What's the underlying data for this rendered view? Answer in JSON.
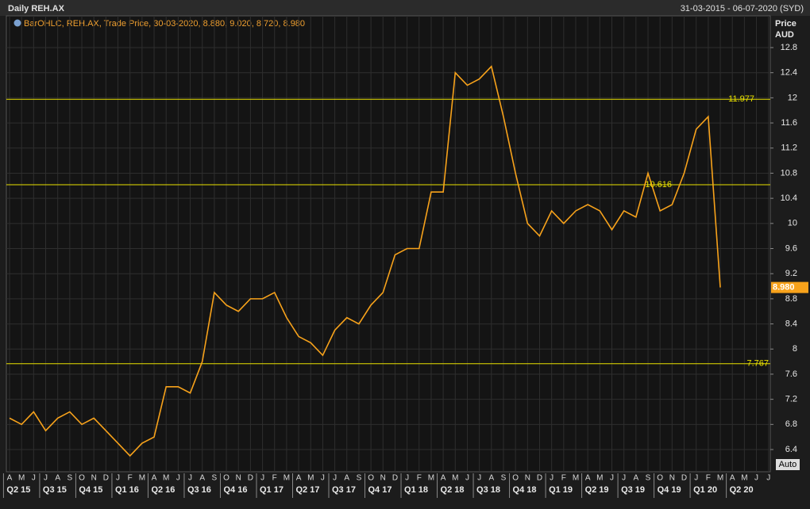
{
  "chart_data": {
    "type": "line",
    "title": "Daily REH.AX",
    "subtitle": "31-03-2015 - 06-07-2020 (SYD)",
    "y_label": "Price",
    "y_unit": "AUD",
    "auto_label": "Auto",
    "categories": [
      "A",
      "M",
      "J",
      "J",
      "A",
      "S",
      "O",
      "N",
      "D",
      "J",
      "F",
      "M",
      "A",
      "M",
      "J",
      "J",
      "A",
      "S",
      "O",
      "N",
      "D",
      "J",
      "F",
      "M",
      "A",
      "M",
      "J",
      "J",
      "A",
      "S",
      "O",
      "N",
      "D",
      "J",
      "F",
      "M",
      "A",
      "M",
      "J",
      "J",
      "A",
      "S",
      "O",
      "N",
      "D",
      "J",
      "F",
      "M",
      "A",
      "M",
      "J",
      "J",
      "A",
      "S",
      "O",
      "N",
      "D",
      "J",
      "F",
      "M",
      "A",
      "M",
      "J",
      "J"
    ],
    "quarters": [
      "Q2 15",
      "Q3 15",
      "Q4 15",
      "Q1 16",
      "Q2 16",
      "Q3 16",
      "Q4 16",
      "Q1 17",
      "Q2 17",
      "Q3 17",
      "Q4 17",
      "Q1 18",
      "Q2 18",
      "Q3 18",
      "Q4 18",
      "Q1 19",
      "Q2 19",
      "Q3 19",
      "Q4 19",
      "Q1 20",
      "Q2 20"
    ],
    "series": [
      {
        "name": "BarOHLC, REH.AX, Trade Price, 30-03-2020, 8.880, 9.020, 8.720, 8.980",
        "color": "#f7a21b",
        "values": [
          6.9,
          6.8,
          7.0,
          6.7,
          6.9,
          7.0,
          6.8,
          6.9,
          6.7,
          6.5,
          6.3,
          6.5,
          6.6,
          7.4,
          7.4,
          7.3,
          7.8,
          8.9,
          8.7,
          8.6,
          8.8,
          8.8,
          8.9,
          8.5,
          8.2,
          8.1,
          7.9,
          8.3,
          8.5,
          8.4,
          8.7,
          8.9,
          9.5,
          9.6,
          9.6,
          10.5,
          10.5,
          12.4,
          12.2,
          12.3,
          12.5,
          11.7,
          10.8,
          10.0,
          9.8,
          10.2,
          10.0,
          10.2,
          10.3,
          10.2,
          9.9,
          10.2,
          10.1,
          10.8,
          10.2,
          10.3,
          10.8,
          11.5,
          11.7,
          8.98,
          null,
          null,
          null,
          null
        ]
      }
    ],
    "levels": [
      11.977,
      10.616,
      7.767
    ],
    "level_color": "#e8e000",
    "last_price": {
      "value": 8.98,
      "label": "8.980"
    },
    "ylim": [
      6.1,
      13.2
    ],
    "yticks": [
      6.4,
      6.8,
      7.2,
      7.6,
      8,
      8.4,
      8.8,
      9.2,
      9.6,
      10,
      10.4,
      10.8,
      11.2,
      11.6,
      12,
      12.4,
      12.8
    ],
    "grid": true
  }
}
